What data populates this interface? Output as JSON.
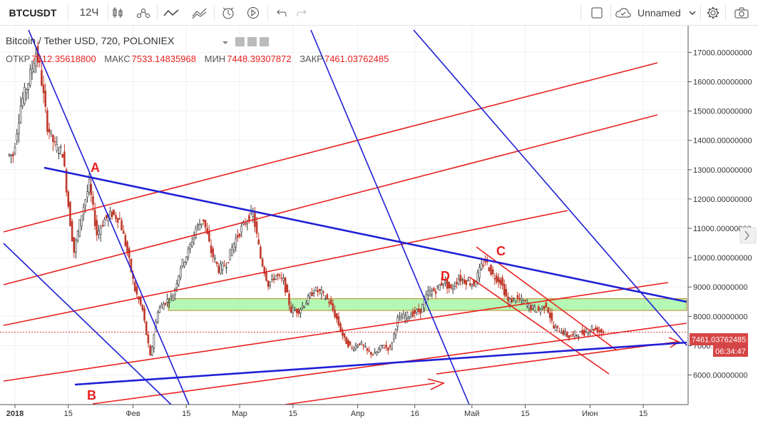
{
  "toolbar": {
    "symbol": "BTCUSDT",
    "interval": "12Ч",
    "layout_name": "Unnamed",
    "icons": [
      "candles-icon",
      "indicators-icon",
      "line-icon",
      "compare-icon",
      "alert-icon",
      "replay-icon",
      "undo-icon",
      "redo-icon",
      "fullscreen-icon",
      "cloud-icon",
      "chevron-down-icon",
      "settings-icon",
      "camera-icon"
    ]
  },
  "legend": {
    "title": "Bitcoin / Tether USD, 720, POLONIEX",
    "open_label": "ОТКР",
    "open": "7512.35618800",
    "high_label": "МАКС",
    "high": "7533.14835968",
    "low_label": "МИН",
    "low": "7448.39307872",
    "close_label": "ЗАКР",
    "close": "7461.03762485"
  },
  "price_label": "7461.03762485",
  "countdown_label": "06:34:47",
  "colors": {
    "up": "#333333",
    "down": "#c0392b",
    "red_line": "#e8201f",
    "blue_line": "#1f1fd6",
    "zone_fill": "#9cf59c",
    "zone_border": "#b88a1e",
    "price_tag": "#d64545"
  },
  "annotations": [
    {
      "text": "A",
      "color": "#e8201f"
    },
    {
      "text": "B",
      "color": "#e8201f"
    },
    {
      "text": "C",
      "color": "#e8201f"
    },
    {
      "text": "D",
      "color": "#e8201f"
    }
  ],
  "chart_data": {
    "type": "candlestick",
    "title": "Bitcoin / Tether USD, 720, POLONIEX",
    "ylim": [
      5200,
      17800
    ],
    "y_ticks": [
      "6000.00000000",
      "7000.00000000",
      "8000.00000000",
      "9000.00000000",
      "10000.00000000",
      "11000.00000000",
      "12000.00000000",
      "13000.00000000",
      "14000.00000000",
      "15000.00000000",
      "16000.00000000",
      "17000.00000000"
    ],
    "x_tick_labels": [
      "2018",
      "15",
      "Фев",
      "15",
      "Мар",
      "15",
      "Апр",
      "16",
      "Май",
      "15",
      "Июн",
      "15"
    ],
    "last_price": 7461.03762485,
    "support_zone": [
      8200,
      8600
    ],
    "price_path": [
      [
        "2018-01-01",
        13500
      ],
      [
        "2018-01-03",
        15200
      ],
      [
        "2018-01-05",
        16000
      ],
      [
        "2018-01-07",
        17000
      ],
      [
        "2018-01-08",
        16500
      ],
      [
        "2018-01-10",
        14500
      ],
      [
        "2018-01-12",
        13800
      ],
      [
        "2018-01-14",
        13600
      ],
      [
        "2018-01-16",
        11200
      ],
      [
        "2018-01-17",
        10200
      ],
      [
        "2018-01-19",
        11500
      ],
      [
        "2018-01-21",
        12500
      ],
      [
        "2018-01-23",
        10800
      ],
      [
        "2018-01-25",
        11300
      ],
      [
        "2018-01-27",
        11500
      ],
      [
        "2018-01-29",
        11300
      ],
      [
        "2018-01-31",
        10200
      ],
      [
        "2018-02-02",
        8900
      ],
      [
        "2018-02-04",
        8200
      ],
      [
        "2018-02-06",
        6600
      ],
      [
        "2018-02-08",
        8200
      ],
      [
        "2018-02-10",
        8500
      ],
      [
        "2018-02-12",
        8700
      ],
      [
        "2018-02-14",
        9700
      ],
      [
        "2018-02-16",
        10200
      ],
      [
        "2018-02-18",
        11000
      ],
      [
        "2018-02-20",
        11300
      ],
      [
        "2018-02-22",
        10200
      ],
      [
        "2018-02-24",
        9600
      ],
      [
        "2018-02-26",
        9800
      ],
      [
        "2018-02-28",
        10500
      ],
      [
        "2018-03-02",
        11000
      ],
      [
        "2018-03-04",
        11400
      ],
      [
        "2018-03-05",
        11500
      ],
      [
        "2018-03-07",
        10000
      ],
      [
        "2018-03-09",
        9100
      ],
      [
        "2018-03-11",
        9400
      ],
      [
        "2018-03-13",
        9200
      ],
      [
        "2018-03-15",
        8200
      ],
      [
        "2018-03-17",
        8200
      ],
      [
        "2018-03-19",
        8500
      ],
      [
        "2018-03-21",
        8900
      ],
      [
        "2018-03-23",
        8800
      ],
      [
        "2018-03-25",
        8500
      ],
      [
        "2018-03-27",
        7900
      ],
      [
        "2018-03-29",
        7200
      ],
      [
        "2018-03-31",
        6900
      ],
      [
        "2018-04-02",
        7100
      ],
      [
        "2018-04-04",
        6800
      ],
      [
        "2018-04-06",
        6700
      ],
      [
        "2018-04-08",
        7000
      ],
      [
        "2018-04-10",
        6900
      ],
      [
        "2018-04-12",
        7900
      ],
      [
        "2018-04-14",
        8000
      ],
      [
        "2018-04-16",
        8100
      ],
      [
        "2018-04-18",
        8200
      ],
      [
        "2018-04-20",
        8800
      ],
      [
        "2018-04-22",
        8900
      ],
      [
        "2018-04-24",
        9200
      ],
      [
        "2018-04-26",
        8900
      ],
      [
        "2018-04-28",
        9300
      ],
      [
        "2018-04-30",
        9200
      ],
      [
        "2018-05-02",
        9100
      ],
      [
        "2018-05-04",
        9700
      ],
      [
        "2018-05-05",
        9900
      ],
      [
        "2018-05-07",
        9400
      ],
      [
        "2018-05-09",
        9200
      ],
      [
        "2018-05-11",
        8500
      ],
      [
        "2018-05-13",
        8600
      ],
      [
        "2018-05-15",
        8500
      ],
      [
        "2018-05-17",
        8300
      ],
      [
        "2018-05-19",
        8200
      ],
      [
        "2018-05-21",
        8400
      ],
      [
        "2018-05-23",
        7600
      ],
      [
        "2018-05-25",
        7500
      ],
      [
        "2018-05-27",
        7300
      ],
      [
        "2018-05-29",
        7400
      ],
      [
        "2018-05-31",
        7450
      ],
      [
        "2018-06-02",
        7600
      ],
      [
        "2018-06-04",
        7500
      ],
      [
        "2018-06-05",
        7461
      ]
    ]
  }
}
